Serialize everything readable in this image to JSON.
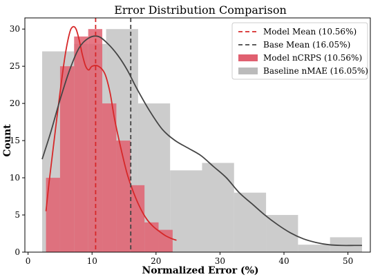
{
  "chart_data": {
    "type": "bar",
    "title": "Error Distribution Comparison",
    "xlabel": "Normalized Error (%)",
    "ylabel": "Count",
    "xlim": [
      -0.5,
      53.5
    ],
    "ylim": [
      0,
      31.5
    ],
    "xticks": [
      0,
      10,
      20,
      30,
      40,
      50
    ],
    "yticks": [
      0,
      5,
      10,
      15,
      20,
      25,
      30
    ],
    "grid": false,
    "legend_position": "top-right",
    "series": [
      {
        "name": "Model nCRPS (10.56%)",
        "kind": "histogram",
        "color": "#e06070",
        "opacity": 0.85,
        "bin_edges": [
          2.8,
          5.0,
          7.2,
          9.4,
          11.6,
          13.8,
          16.0,
          18.2,
          20.4,
          22.6
        ],
        "counts": [
          10,
          25,
          29,
          30,
          20,
          15,
          9,
          4,
          3
        ]
      },
      {
        "name": "Baseline nMAE (16.05%)",
        "kind": "histogram",
        "color": "#bbbbbb",
        "opacity": 0.75,
        "bin_edges": [
          2.2,
          7.2,
          12.2,
          17.2,
          22.2,
          27.2,
          32.2,
          37.2,
          42.2,
          47.2,
          52.2
        ],
        "counts": [
          27,
          28,
          30,
          20,
          11,
          12,
          8,
          5,
          1,
          2
        ]
      }
    ],
    "kde": [
      {
        "for": "Model nCRPS (10.56%)",
        "color": "#d62728",
        "x": [
          2.8,
          3.3,
          4.0,
          5.0,
          5.8,
          6.5,
          7.0,
          7.5,
          8.0,
          8.5,
          9.0,
          9.5,
          10.0,
          11.0,
          12.0,
          12.8,
          13.5,
          14.5,
          15.5,
          16.5,
          17.5,
          18.5,
          19.5,
          20.5,
          21.5,
          22.5,
          23.2
        ],
        "y": [
          5.5,
          9.5,
          14.5,
          21.5,
          26.5,
          29.5,
          30.3,
          30.0,
          28.5,
          26.5,
          25.0,
          24.5,
          25.0,
          25.0,
          24.0,
          21.5,
          18.0,
          14.0,
          10.5,
          8.0,
          6.0,
          4.5,
          3.5,
          2.8,
          2.2,
          1.8,
          1.6
        ]
      },
      {
        "for": "Baseline nMAE (16.05%)",
        "color": "#444444",
        "x": [
          2.2,
          3.5,
          5.0,
          6.5,
          8.0,
          9.5,
          11.0,
          12.5,
          14.0,
          15.5,
          17.0,
          19.0,
          21.0,
          23.0,
          25.0,
          27.0,
          29.0,
          31.0,
          33.0,
          35.0,
          37.0,
          39.0,
          41.0,
          43.0,
          45.0,
          47.0,
          49.0,
          51.0,
          52.2
        ],
        "y": [
          12.5,
          16.0,
          20.5,
          24.5,
          27.5,
          28.8,
          29.0,
          28.0,
          26.5,
          24.5,
          22.0,
          19.0,
          16.5,
          15.0,
          14.0,
          13.0,
          11.5,
          10.0,
          8.0,
          6.5,
          5.0,
          3.7,
          2.6,
          1.8,
          1.3,
          1.0,
          0.9,
          0.9,
          0.9
        ]
      }
    ],
    "reference_lines": [
      {
        "name": "Model Mean (10.56%)",
        "x": 10.56,
        "color": "#d62728",
        "style": "dashed"
      },
      {
        "name": "Base Mean (16.05%)",
        "x": 16.05,
        "color": "#444444",
        "style": "dashed"
      }
    ],
    "legend": [
      {
        "label": "Model Mean (10.56%)",
        "kind": "dashed-line",
        "color": "#d62728"
      },
      {
        "label": "Base Mean (16.05%)",
        "kind": "dashed-line",
        "color": "#444444"
      },
      {
        "label": "Model nCRPS (10.56%)",
        "kind": "patch",
        "color": "#e06070"
      },
      {
        "label": "Baseline nMAE (16.05%)",
        "kind": "patch",
        "color": "#bbbbbb"
      }
    ]
  }
}
